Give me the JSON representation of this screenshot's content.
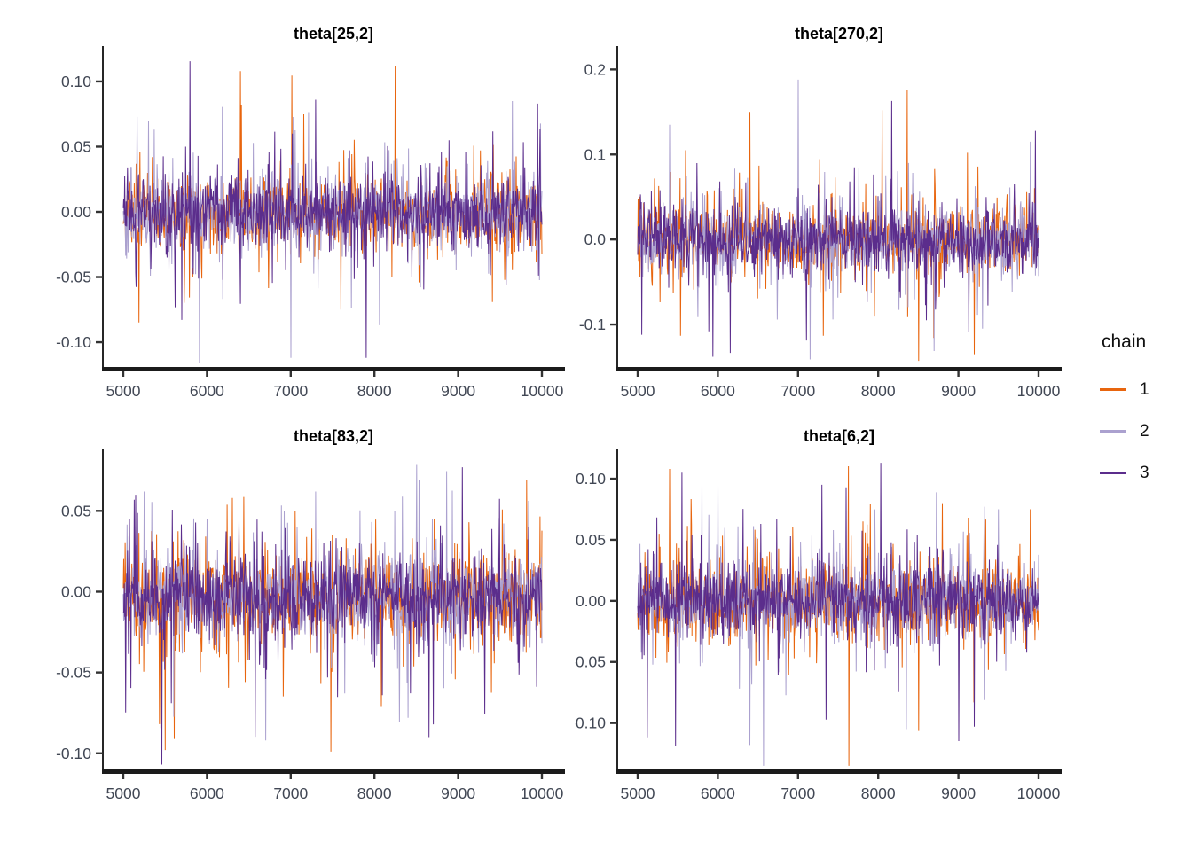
{
  "figure": {
    "background": "#ffffff"
  },
  "legend": {
    "title": "chain",
    "items": [
      {
        "label": "1",
        "color": "#e8650e"
      },
      {
        "label": "2",
        "color": "#aba1cf"
      },
      {
        "label": "3",
        "color": "#5b2d8c"
      }
    ]
  },
  "chart_data": [
    {
      "type": "line",
      "title": "theta[25,2]",
      "xlabel": "",
      "ylabel": "",
      "grid": false,
      "legend_position": "right",
      "xlim": [
        5000,
        10000
      ],
      "ylim": [
        -0.119,
        0.119
      ],
      "x_ticks": [
        {
          "v": 5000,
          "label": "5000"
        },
        {
          "v": 6000,
          "label": "6000"
        },
        {
          "v": 7000,
          "label": "7000"
        },
        {
          "v": 8000,
          "label": "8000"
        },
        {
          "v": 9000,
          "label": "9000"
        },
        {
          "v": 10000,
          "label": "10000"
        }
      ],
      "y_ticks": [
        {
          "v": 0.1,
          "label": "0.10"
        },
        {
          "v": 0.05,
          "label": "0.05"
        },
        {
          "v": 0.0,
          "label": "0.00"
        },
        {
          "v": -0.05,
          "label": "-0.05"
        },
        {
          "v": -0.1,
          "label": "-0.10"
        }
      ],
      "n": 880,
      "series": [
        {
          "name": "1",
          "color": "#e8650e",
          "seed": 101,
          "sd": [
            0.013,
            0.027,
            0.05
          ],
          "bias": 0,
          "extremes": [
            [
              6400,
              0.108
            ],
            [
              8250,
              0.112
            ],
            [
              7600,
              -0.075
            ]
          ]
        },
        {
          "name": "2",
          "color": "#aba1cf",
          "seed": 102,
          "sd": [
            0.013,
            0.027,
            0.05
          ],
          "bias": 0,
          "extremes": [
            [
              7000,
              -0.112
            ],
            [
              9650,
              0.085
            ],
            [
              5300,
              0.07
            ]
          ]
        },
        {
          "name": "3",
          "color": "#5b2d8c",
          "seed": 103,
          "sd": [
            0.013,
            0.027,
            0.05
          ],
          "bias": 0,
          "extremes": [
            [
              7900,
              -0.112
            ],
            [
              7300,
              0.086
            ],
            [
              9950,
              0.083
            ]
          ]
        }
      ]
    },
    {
      "type": "line",
      "title": "theta[270,2]",
      "xlabel": "",
      "ylabel": "",
      "grid": false,
      "legend_position": "right",
      "xlim": [
        5000,
        10000
      ],
      "ylim": [
        -0.15,
        0.215
      ],
      "x_ticks": [
        {
          "v": 5000,
          "label": "5000"
        },
        {
          "v": 6000,
          "label": "6000"
        },
        {
          "v": 7000,
          "label": "7000"
        },
        {
          "v": 8000,
          "label": "8000"
        },
        {
          "v": 9000,
          "label": "9000"
        },
        {
          "v": 10000,
          "label": "10000"
        }
      ],
      "y_ticks": [
        {
          "v": 0.2,
          "label": "0.2"
        },
        {
          "v": 0.1,
          "label": "0.1"
        },
        {
          "v": 0.0,
          "label": "0.0"
        },
        {
          "v": -0.1,
          "label": "-0.1"
        }
      ],
      "n": 880,
      "series": [
        {
          "name": "1",
          "color": "#e8650e",
          "seed": 201,
          "sd": [
            0.018,
            0.038,
            0.065
          ],
          "bias": 0,
          "extremes": [
            [
              6400,
              0.15
            ],
            [
              8050,
              0.152
            ],
            [
              9200,
              -0.135
            ],
            [
              5600,
              0.105
            ]
          ]
        },
        {
          "name": "2",
          "color": "#aba1cf",
          "seed": 202,
          "sd": [
            0.018,
            0.038,
            0.065
          ],
          "bias": 0,
          "extremes": [
            [
              7000,
              0.188
            ],
            [
              5400,
              0.135
            ],
            [
              9900,
              0.115
            ],
            [
              9300,
              -0.105
            ]
          ]
        },
        {
          "name": "3",
          "color": "#5b2d8c",
          "seed": 203,
          "sd": [
            0.018,
            0.038,
            0.065
          ],
          "bias": 0,
          "extremes": [
            [
              5050,
              -0.112
            ],
            [
              7700,
              0.085
            ],
            [
              8600,
              -0.095
            ]
          ]
        }
      ]
    },
    {
      "type": "line",
      "title": "theta[83,2]",
      "xlabel": "",
      "ylabel": "",
      "grid": false,
      "legend_position": "right",
      "xlim": [
        5000,
        10000
      ],
      "ylim": [
        -0.11,
        0.082
      ],
      "x_ticks": [
        {
          "v": 5000,
          "label": "5000"
        },
        {
          "v": 6000,
          "label": "6000"
        },
        {
          "v": 7000,
          "label": "7000"
        },
        {
          "v": 8000,
          "label": "8000"
        },
        {
          "v": 9000,
          "label": "9000"
        },
        {
          "v": 10000,
          "label": "10000"
        }
      ],
      "y_ticks": [
        {
          "v": 0.05,
          "label": "0.05"
        },
        {
          "v": 0.0,
          "label": "0.00"
        },
        {
          "v": -0.05,
          "label": "-0.05"
        },
        {
          "v": -0.1,
          "label": "-0.10"
        }
      ],
      "n": 880,
      "series": [
        {
          "name": "1",
          "color": "#e8650e",
          "seed": 301,
          "sd": [
            0.012,
            0.026,
            0.045
          ],
          "bias": -0.003,
          "extremes": [
            [
              5500,
              -0.098
            ],
            [
              7480,
              -0.099
            ],
            [
              6300,
              0.058
            ]
          ]
        },
        {
          "name": "2",
          "color": "#aba1cf",
          "seed": 302,
          "sd": [
            0.012,
            0.026,
            0.045
          ],
          "bias": -0.003,
          "extremes": [
            [
              5250,
              0.062
            ],
            [
              7300,
              0.062
            ],
            [
              6700,
              -0.092
            ],
            [
              8400,
              -0.078
            ]
          ]
        },
        {
          "name": "3",
          "color": "#5b2d8c",
          "seed": 303,
          "sd": [
            0.012,
            0.026,
            0.045
          ],
          "bias": -0.003,
          "extremes": [
            [
              9050,
              0.077
            ],
            [
              8650,
              -0.09
            ],
            [
              5150,
              0.06
            ]
          ]
        }
      ]
    },
    {
      "type": "line",
      "title": "theta[6,2]",
      "xlabel": "",
      "ylabel": "",
      "grid": false,
      "legend_position": "right",
      "xlim": [
        5000,
        10000
      ],
      "ylim": [
        -0.138,
        0.116
      ],
      "x_ticks": [
        {
          "v": 5000,
          "label": "5000"
        },
        {
          "v": 6000,
          "label": "6000"
        },
        {
          "v": 7000,
          "label": "7000"
        },
        {
          "v": 8000,
          "label": "8000"
        },
        {
          "v": 9000,
          "label": "9000"
        },
        {
          "v": 10000,
          "label": "10000"
        }
      ],
      "y_ticks": [
        {
          "v": 0.1,
          "label": "0.10"
        },
        {
          "v": 0.05,
          "label": "0.05"
        },
        {
          "v": 0.0,
          "label": "0.00"
        },
        {
          "v": -0.05,
          "label": "-0.05"
        },
        {
          "v": -0.1,
          "label": "-0.10"
        }
      ],
      "n": 880,
      "series": [
        {
          "name": "1",
          "color": "#e8650e",
          "seed": 401,
          "sd": [
            0.014,
            0.03,
            0.055
          ],
          "bias": 0,
          "extremes": [
            [
              5400,
              0.108
            ],
            [
              9900,
              0.075
            ],
            [
              8800,
              0.08
            ]
          ]
        },
        {
          "name": "2",
          "color": "#aba1cf",
          "seed": 402,
          "sd": [
            0.014,
            0.03,
            0.055
          ],
          "bias": 0,
          "extremes": [
            [
              6400,
              -0.118
            ],
            [
              8350,
              -0.105
            ],
            [
              6000,
              0.095
            ],
            [
              9500,
              0.075
            ]
          ]
        },
        {
          "name": "3",
          "color": "#5b2d8c",
          "seed": 403,
          "sd": [
            0.014,
            0.03,
            0.055
          ],
          "bias": 0,
          "extremes": [
            [
              5550,
              0.105
            ],
            [
              7300,
              0.095
            ],
            [
              7600,
              0.093
            ],
            [
              9200,
              -0.103
            ]
          ]
        }
      ]
    }
  ]
}
